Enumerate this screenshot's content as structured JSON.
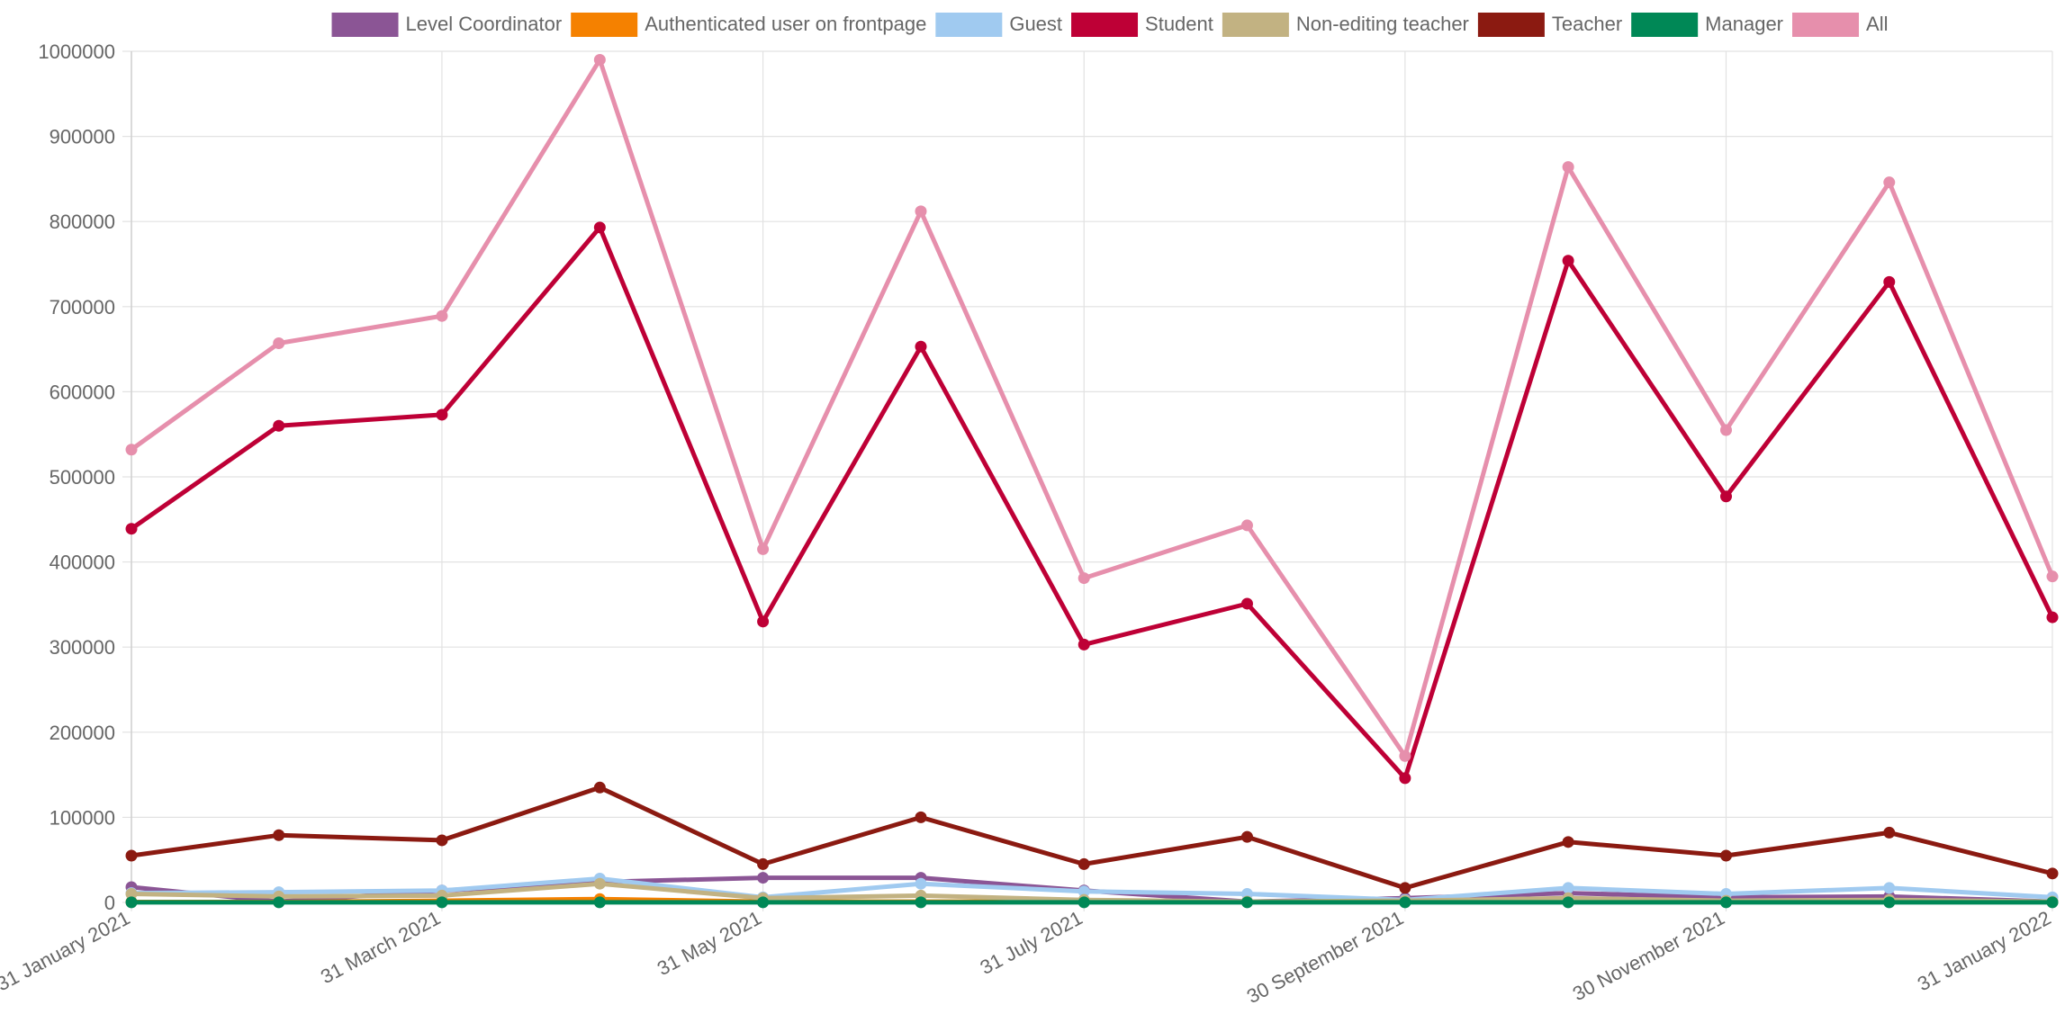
{
  "chart_data": {
    "type": "line",
    "title": "",
    "xlabel": "",
    "ylabel": "",
    "ylim": [
      0,
      1000000
    ],
    "y_ticks": [
      0,
      100000,
      200000,
      300000,
      400000,
      500000,
      600000,
      700000,
      800000,
      900000,
      1000000
    ],
    "y_tick_labels": [
      "0",
      "100000",
      "200000",
      "300000",
      "400000",
      "500000",
      "600000",
      "700000",
      "800000",
      "900000",
      "1000000"
    ],
    "x": [
      "2021-01-31",
      "2021-02-28",
      "2021-03-31",
      "2021-04-30",
      "2021-05-31",
      "2021-06-30",
      "2021-07-31",
      "2021-08-31",
      "2021-09-30",
      "2021-10-31",
      "2021-11-30",
      "2021-12-31",
      "2022-01-31"
    ],
    "x_tick_labels": [
      "31 January 2021",
      "31 March 2021",
      "31 May 2021",
      "31 July 2021",
      "30 September 2021",
      "30 November 2021",
      "31 January 2022"
    ],
    "x_tick_indices": [
      0,
      2,
      4,
      6,
      8,
      10,
      12
    ],
    "grid": true,
    "legend_position": "top",
    "series": [
      {
        "name": "Level Coordinator",
        "color": "#8b5595",
        "values": [
          18000,
          1000,
          14000,
          24000,
          29000,
          29000,
          14000,
          1000,
          5000,
          11000,
          6000,
          7000,
          1000
        ]
      },
      {
        "name": "Authenticated user on frontpage",
        "color": "#f58100",
        "values": [
          500,
          500,
          2000,
          4000,
          1000,
          1000,
          1000,
          500,
          500,
          1000,
          500,
          500,
          500
        ]
      },
      {
        "name": "Guest",
        "color": "#a0caf0",
        "values": [
          11000,
          12000,
          14000,
          28000,
          6000,
          22000,
          13000,
          10000,
          3000,
          17000,
          10000,
          17000,
          6000
        ]
      },
      {
        "name": "Student",
        "color": "#be0036",
        "values": [
          439000,
          560000,
          573000,
          793000,
          330000,
          653000,
          303000,
          351000,
          146000,
          754000,
          477000,
          729000,
          335000
        ]
      },
      {
        "name": "Non-editing teacher",
        "color": "#c2b282",
        "values": [
          10000,
          7000,
          8000,
          22000,
          5000,
          8000,
          3000,
          1000,
          2000,
          5000,
          2000,
          3000,
          1000
        ]
      },
      {
        "name": "Teacher",
        "color": "#8b1a11",
        "values": [
          55000,
          79000,
          73000,
          135000,
          45000,
          100000,
          45000,
          77000,
          17000,
          71000,
          55000,
          82000,
          34000
        ]
      },
      {
        "name": "Manager",
        "color": "#008856",
        "values": [
          100,
          100,
          100,
          100,
          100,
          100,
          100,
          100,
          100,
          100,
          100,
          100,
          100
        ]
      },
      {
        "name": "All",
        "color": "#e68fac",
        "values": [
          532000,
          657000,
          689000,
          990000,
          415000,
          812000,
          381000,
          443000,
          172000,
          864000,
          555000,
          846000,
          383000
        ]
      }
    ]
  }
}
